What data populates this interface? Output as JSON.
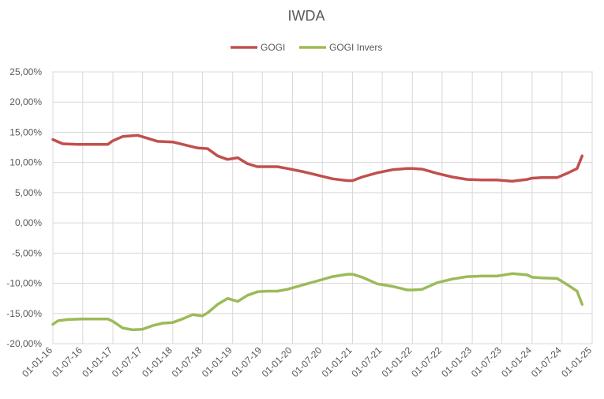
{
  "chart_data": {
    "type": "line",
    "title": "IWDA",
    "xlabel": "",
    "ylabel": "",
    "ylim": [
      -20,
      25
    ],
    "y_ticks": [
      25,
      20,
      15,
      10,
      5,
      0,
      -5,
      -10,
      -15,
      -20
    ],
    "y_tick_labels": [
      "25,00%",
      "20,00%",
      "15,00%",
      "10,00%",
      "5,00%",
      "0,00%",
      "-5,00%",
      "-10,00%",
      "-15,00%",
      "-20,00%"
    ],
    "x_tick_labels": [
      "01-01-16",
      "01-07-16",
      "01-01-17",
      "01-07-17",
      "01-01-18",
      "01-07-18",
      "01-01-19",
      "01-07-19",
      "01-01-20",
      "01-07-20",
      "01-01-21",
      "01-07-21",
      "01-01-22",
      "01-07-22",
      "01-01-23",
      "01-07-23",
      "01-01-24",
      "01-07-24",
      "01-01-25"
    ],
    "grid": true,
    "legend_position": "top",
    "series": [
      {
        "name": "GOGI",
        "color": "#c0504d",
        "x": [
          "2016-01-01",
          "2016-03-01",
          "2016-06-01",
          "2016-09-01",
          "2016-12-01",
          "2017-01-01",
          "2017-03-01",
          "2017-06-01",
          "2017-08-01",
          "2017-10-01",
          "2018-01-01",
          "2018-03-01",
          "2018-06-01",
          "2018-08-01",
          "2018-10-01",
          "2018-12-01",
          "2019-02-01",
          "2019-04-01",
          "2019-06-01",
          "2019-08-01",
          "2019-10-01",
          "2019-12-01",
          "2020-03-01",
          "2020-06-01",
          "2020-09-01",
          "2020-12-01",
          "2021-01-01",
          "2021-03-01",
          "2021-06-01",
          "2021-09-01",
          "2021-12-01",
          "2022-01-01",
          "2022-03-01",
          "2022-06-01",
          "2022-09-01",
          "2022-12-01",
          "2023-03-01",
          "2023-06-01",
          "2023-09-01",
          "2023-12-01",
          "2024-01-01",
          "2024-03-01",
          "2024-06-01",
          "2024-08-01",
          "2024-10-01",
          "2024-11-01"
        ],
        "values": [
          13.8,
          13.1,
          13.0,
          13.0,
          13.0,
          13.6,
          14.3,
          14.5,
          14.0,
          13.5,
          13.4,
          13.0,
          12.4,
          12.3,
          11.1,
          10.5,
          10.8,
          9.8,
          9.3,
          9.3,
          9.3,
          9.0,
          8.5,
          7.9,
          7.3,
          7.0,
          7.0,
          7.6,
          8.3,
          8.8,
          9.0,
          9.0,
          8.9,
          8.2,
          7.6,
          7.2,
          7.1,
          7.1,
          6.9,
          7.2,
          7.4,
          7.5,
          7.5,
          8.2,
          9.0,
          11.1
        ]
      },
      {
        "name": "GOGI Invers",
        "color": "#9bbb59",
        "x": [
          "2016-01-01",
          "2016-02-01",
          "2016-04-01",
          "2016-07-01",
          "2016-12-01",
          "2017-01-01",
          "2017-03-01",
          "2017-05-01",
          "2017-07-01",
          "2017-09-01",
          "2017-11-01",
          "2018-01-01",
          "2018-03-01",
          "2018-05-01",
          "2018-07-01",
          "2018-08-01",
          "2018-10-01",
          "2018-12-01",
          "2019-02-01",
          "2019-04-01",
          "2019-06-01",
          "2019-08-01",
          "2019-10-01",
          "2019-12-01",
          "2020-03-01",
          "2020-06-01",
          "2020-09-01",
          "2020-12-01",
          "2021-01-01",
          "2021-03-01",
          "2021-06-01",
          "2021-09-01",
          "2021-12-01",
          "2022-01-01",
          "2022-03-01",
          "2022-06-01",
          "2022-09-01",
          "2022-12-01",
          "2023-03-01",
          "2023-06-01",
          "2023-09-01",
          "2023-12-01",
          "2024-01-01",
          "2024-03-01",
          "2024-06-01",
          "2024-08-01",
          "2024-10-01",
          "2024-11-01"
        ],
        "values": [
          -16.8,
          -16.2,
          -16.0,
          -15.9,
          -15.9,
          -16.3,
          -17.4,
          -17.7,
          -17.6,
          -17.0,
          -16.6,
          -16.5,
          -15.9,
          -15.2,
          -15.4,
          -14.9,
          -13.5,
          -12.5,
          -13.0,
          -12.0,
          -11.4,
          -11.3,
          -11.3,
          -11.0,
          -10.3,
          -9.6,
          -8.9,
          -8.5,
          -8.5,
          -9.0,
          -10.1,
          -10.5,
          -11.1,
          -11.1,
          -11.0,
          -9.9,
          -9.3,
          -8.9,
          -8.8,
          -8.8,
          -8.4,
          -8.6,
          -9.0,
          -9.1,
          -9.2,
          -10.2,
          -11.3,
          -13.5
        ]
      }
    ]
  }
}
